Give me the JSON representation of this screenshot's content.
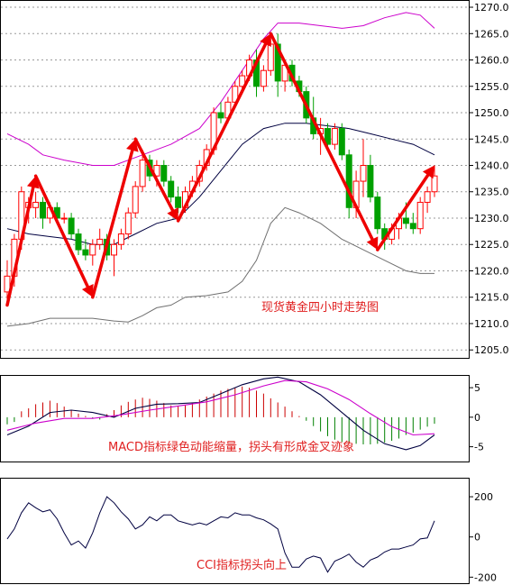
{
  "chart_data": [
    {
      "type": "candlestick",
      "panel": "price",
      "annotation": "现货黄金四小时走势图",
      "y_ticks": [
        "1270.0",
        "1265.0",
        "1260.0",
        "1255.0",
        "1250.0",
        "1245.0",
        "1240.0",
        "1235.0",
        "1230.0",
        "1225.0",
        "1220.0",
        "1215.0",
        "1210.0",
        "1205.0"
      ],
      "ylim": [
        1203.5,
        1271.2
      ],
      "colors": {
        "up": "#ff0000",
        "down": "#00a000",
        "upper_band": "#cc00cc",
        "middle_band": "#000040",
        "lower_band": "#707070",
        "arrow": "#ee0000"
      },
      "candles": [
        {
          "o": 1216,
          "h": 1222,
          "l": 1214,
          "c": 1219
        },
        {
          "o": 1219,
          "h": 1227,
          "l": 1217,
          "c": 1226
        },
        {
          "o": 1226,
          "h": 1236,
          "l": 1224,
          "c": 1235
        },
        {
          "o": 1232,
          "h": 1234,
          "l": 1229,
          "c": 1233
        },
        {
          "o": 1232,
          "h": 1235,
          "l": 1230,
          "c": 1233
        },
        {
          "o": 1233,
          "h": 1234,
          "l": 1228,
          "c": 1230
        },
        {
          "o": 1230,
          "h": 1233,
          "l": 1229,
          "c": 1232
        },
        {
          "o": 1232,
          "h": 1233,
          "l": 1229,
          "c": 1230
        },
        {
          "o": 1230,
          "h": 1231,
          "l": 1229,
          "c": 1230
        },
        {
          "o": 1230,
          "h": 1231,
          "l": 1226,
          "c": 1227
        },
        {
          "o": 1227,
          "h": 1228,
          "l": 1223,
          "c": 1224
        },
        {
          "o": 1224,
          "h": 1226,
          "l": 1222,
          "c": 1223
        },
        {
          "o": 1223,
          "h": 1226,
          "l": 1221,
          "c": 1225
        },
        {
          "o": 1225,
          "h": 1228,
          "l": 1224,
          "c": 1226
        },
        {
          "o": 1226,
          "h": 1227,
          "l": 1222,
          "c": 1223
        },
        {
          "o": 1223,
          "h": 1226,
          "l": 1219,
          "c": 1225
        },
        {
          "o": 1225,
          "h": 1228,
          "l": 1224,
          "c": 1227
        },
        {
          "o": 1227,
          "h": 1232,
          "l": 1226,
          "c": 1231
        },
        {
          "o": 1231,
          "h": 1237,
          "l": 1230,
          "c": 1236
        },
        {
          "o": 1236,
          "h": 1243,
          "l": 1235,
          "c": 1241
        },
        {
          "o": 1241,
          "h": 1242,
          "l": 1237,
          "c": 1238
        },
        {
          "o": 1238,
          "h": 1241,
          "l": 1236,
          "c": 1240
        },
        {
          "o": 1240,
          "h": 1241,
          "l": 1236,
          "c": 1237
        },
        {
          "o": 1237,
          "h": 1238,
          "l": 1233,
          "c": 1234
        },
        {
          "o": 1234,
          "h": 1236,
          "l": 1231,
          "c": 1232
        },
        {
          "o": 1232,
          "h": 1236,
          "l": 1231,
          "c": 1235
        },
        {
          "o": 1235,
          "h": 1238,
          "l": 1234,
          "c": 1237
        },
        {
          "o": 1237,
          "h": 1241,
          "l": 1236,
          "c": 1240
        },
        {
          "o": 1240,
          "h": 1244,
          "l": 1239,
          "c": 1243
        },
        {
          "o": 1243,
          "h": 1251,
          "l": 1242,
          "c": 1250
        },
        {
          "o": 1250,
          "h": 1252,
          "l": 1248,
          "c": 1249
        },
        {
          "o": 1249,
          "h": 1253,
          "l": 1248,
          "c": 1252
        },
        {
          "o": 1252,
          "h": 1256,
          "l": 1251,
          "c": 1255
        },
        {
          "o": 1255,
          "h": 1258,
          "l": 1254,
          "c": 1257
        },
        {
          "o": 1257,
          "h": 1261,
          "l": 1256,
          "c": 1260
        },
        {
          "o": 1260,
          "h": 1262,
          "l": 1253,
          "c": 1255
        },
        {
          "o": 1255,
          "h": 1259,
          "l": 1254,
          "c": 1258
        },
        {
          "o": 1258,
          "h": 1265,
          "l": 1257,
          "c": 1263
        },
        {
          "o": 1263,
          "h": 1265,
          "l": 1253,
          "c": 1256
        },
        {
          "o": 1256,
          "h": 1260,
          "l": 1254,
          "c": 1259
        },
        {
          "o": 1259,
          "h": 1260,
          "l": 1255,
          "c": 1256
        },
        {
          "o": 1256,
          "h": 1257,
          "l": 1253,
          "c": 1254
        },
        {
          "o": 1254,
          "h": 1255,
          "l": 1248,
          "c": 1249
        },
        {
          "o": 1249,
          "h": 1253,
          "l": 1245,
          "c": 1246
        },
        {
          "o": 1246,
          "h": 1249,
          "l": 1242,
          "c": 1247
        },
        {
          "o": 1247,
          "h": 1248,
          "l": 1243,
          "c": 1244
        },
        {
          "o": 1244,
          "h": 1248,
          "l": 1243,
          "c": 1247
        },
        {
          "o": 1247,
          "h": 1248,
          "l": 1241,
          "c": 1242
        },
        {
          "o": 1242,
          "h": 1243,
          "l": 1230,
          "c": 1232
        },
        {
          "o": 1232,
          "h": 1239,
          "l": 1230,
          "c": 1237
        },
        {
          "o": 1237,
          "h": 1245,
          "l": 1234,
          "c": 1240
        },
        {
          "o": 1240,
          "h": 1242,
          "l": 1233,
          "c": 1234
        },
        {
          "o": 1234,
          "h": 1235,
          "l": 1227,
          "c": 1228
        },
        {
          "o": 1228,
          "h": 1229,
          "l": 1224,
          "c": 1226
        },
        {
          "o": 1226,
          "h": 1229,
          "l": 1225,
          "c": 1228
        },
        {
          "o": 1228,
          "h": 1231,
          "l": 1226,
          "c": 1230
        },
        {
          "o": 1230,
          "h": 1233,
          "l": 1228,
          "c": 1229
        },
        {
          "o": 1229,
          "h": 1231,
          "l": 1227,
          "c": 1228
        },
        {
          "o": 1228,
          "h": 1234,
          "l": 1227,
          "c": 1233
        },
        {
          "o": 1233,
          "h": 1236,
          "l": 1231,
          "c": 1235
        },
        {
          "o": 1235,
          "h": 1240,
          "l": 1234,
          "c": 1238
        }
      ],
      "upper_band": [
        [
          0,
          1246
        ],
        [
          3,
          1244
        ],
        [
          5,
          1242
        ],
        [
          8,
          1241
        ],
        [
          12,
          1240
        ],
        [
          15,
          1240
        ],
        [
          19,
          1242
        ],
        [
          23,
          1244
        ],
        [
          27,
          1247
        ],
        [
          30,
          1252
        ],
        [
          33,
          1258
        ],
        [
          36,
          1264
        ],
        [
          38,
          1267
        ],
        [
          41,
          1267
        ],
        [
          44,
          1266.5
        ],
        [
          47,
          1266
        ],
        [
          50,
          1266.5
        ],
        [
          53,
          1268
        ],
        [
          56,
          1269
        ],
        [
          58,
          1268.5
        ],
        [
          60,
          1266
        ]
      ],
      "middle_band": [
        [
          0,
          1228
        ],
        [
          3,
          1227
        ],
        [
          6,
          1226.5
        ],
        [
          9,
          1226
        ],
        [
          12,
          1225
        ],
        [
          15,
          1225
        ],
        [
          18,
          1227
        ],
        [
          21,
          1229
        ],
        [
          24,
          1230
        ],
        [
          27,
          1234
        ],
        [
          30,
          1239
        ],
        [
          33,
          1244
        ],
        [
          36,
          1247
        ],
        [
          39,
          1248
        ],
        [
          42,
          1248
        ],
        [
          45,
          1247.5
        ],
        [
          48,
          1247
        ],
        [
          51,
          1246
        ],
        [
          54,
          1245
        ],
        [
          57,
          1244
        ],
        [
          60,
          1242
        ]
      ],
      "lower_band": [
        [
          0,
          1209.5
        ],
        [
          3,
          1210
        ],
        [
          6,
          1211
        ],
        [
          9,
          1211
        ],
        [
          12,
          1211
        ],
        [
          15,
          1210.5
        ],
        [
          17,
          1210.3
        ],
        [
          19,
          1211.5
        ],
        [
          21,
          1213
        ],
        [
          23,
          1213.5
        ],
        [
          25,
          1215
        ],
        [
          28,
          1215.3
        ],
        [
          31,
          1216
        ],
        [
          33,
          1218
        ],
        [
          35,
          1222
        ],
        [
          37,
          1229
        ],
        [
          39,
          1232
        ],
        [
          41,
          1231
        ],
        [
          44,
          1229
        ],
        [
          47,
          1226
        ],
        [
          50,
          1224
        ],
        [
          53,
          1222
        ],
        [
          56,
          1220
        ],
        [
          58,
          1219.5
        ],
        [
          60,
          1219.5
        ]
      ],
      "arrows": [
        [
          [
            0,
            1213.5
          ],
          [
            4,
            1238
          ]
        ],
        [
          [
            4,
            1238
          ],
          [
            12,
            1215
          ]
        ],
        [
          [
            12,
            1215
          ],
          [
            18,
            1245
          ]
        ],
        [
          [
            18,
            1245
          ],
          [
            24,
            1229.5
          ]
        ],
        [
          [
            24,
            1229.5
          ],
          [
            37,
            1265
          ]
        ],
        [
          [
            37,
            1265
          ],
          [
            52,
            1224
          ]
        ],
        [
          [
            52,
            1224
          ],
          [
            60,
            1240
          ]
        ]
      ]
    },
    {
      "type": "bar",
      "panel": "macd",
      "annotation": "MACD指标绿色动能缩量，拐头有形成金叉迹象",
      "y_ticks": [
        "5",
        "0",
        "-5"
      ],
      "ylim": [
        -7.5,
        7.0
      ],
      "colors": {
        "positive": "#cc0000",
        "negative": "#008000",
        "dif": "#000040",
        "dea": "#cc00cc"
      },
      "histogram": [
        -1.2,
        -0.8,
        1.0,
        1.5,
        2.2,
        2.5,
        2.8,
        2.4,
        1.8,
        1.2,
        0.6,
        0.2,
        -0.2,
        -0.4,
        0.5,
        1.2,
        2.0,
        2.6,
        3.0,
        3.3,
        3.1,
        2.8,
        2.4,
        2.0,
        1.8,
        2.0,
        2.5,
        3.0,
        3.5,
        4.0,
        4.5,
        4.8,
        5.0,
        5.2,
        5.0,
        4.5,
        4.0,
        3.2,
        2.5,
        1.8,
        1.0,
        0.2,
        -0.6,
        -1.5,
        -2.4,
        -3.2,
        -3.8,
        -4.2,
        -4.4,
        -4.5,
        -4.6,
        -4.6,
        -4.5,
        -4.3,
        -4.0,
        -3.6,
        -3.0,
        -2.6,
        -2.1,
        -1.6,
        -1.1
      ],
      "dif": [
        [
          0,
          -3
        ],
        [
          3,
          -1.5
        ],
        [
          6,
          0.8
        ],
        [
          9,
          1.2
        ],
        [
          12,
          0.8
        ],
        [
          15,
          0
        ],
        [
          18,
          1.5
        ],
        [
          21,
          2.2
        ],
        [
          24,
          2.3
        ],
        [
          27,
          2.5
        ],
        [
          30,
          4.0
        ],
        [
          33,
          5.5
        ],
        [
          36,
          6.5
        ],
        [
          38,
          6.8
        ],
        [
          41,
          6.0
        ],
        [
          44,
          3.8
        ],
        [
          47,
          0.8
        ],
        [
          50,
          -2.2
        ],
        [
          53,
          -4.5
        ],
        [
          56,
          -5.5
        ],
        [
          58,
          -4.8
        ],
        [
          60,
          -3.0
        ]
      ],
      "dea": [
        [
          0,
          -2.2
        ],
        [
          4,
          -1.0
        ],
        [
          8,
          -0.2
        ],
        [
          12,
          -0.2
        ],
        [
          16,
          0.4
        ],
        [
          20,
          1.2
        ],
        [
          24,
          1.9
        ],
        [
          28,
          2.6
        ],
        [
          32,
          3.8
        ],
        [
          36,
          5.3
        ],
        [
          39,
          6.2
        ],
        [
          42,
          6.0
        ],
        [
          45,
          4.8
        ],
        [
          48,
          3.0
        ],
        [
          51,
          0.6
        ],
        [
          54,
          -1.6
        ],
        [
          57,
          -3.0
        ],
        [
          60,
          -2.8
        ]
      ]
    },
    {
      "type": "line",
      "panel": "cci",
      "annotation": "CCI指标拐头向上",
      "y_ticks": [
        "200",
        "0",
        "-200"
      ],
      "ylim": [
        -230,
        290
      ],
      "colors": {
        "line": "#000040"
      },
      "values": [
        [
          0,
          -10
        ],
        [
          1,
          40
        ],
        [
          2,
          120
        ],
        [
          3,
          170
        ],
        [
          4,
          145
        ],
        [
          5,
          125
        ],
        [
          6,
          135
        ],
        [
          7,
          90
        ],
        [
          8,
          20
        ],
        [
          9,
          -40
        ],
        [
          10,
          -20
        ],
        [
          11,
          -55
        ],
        [
          12,
          20
        ],
        [
          13,
          120
        ],
        [
          14,
          200
        ],
        [
          15,
          170
        ],
        [
          16,
          125
        ],
        [
          17,
          90
        ],
        [
          18,
          40
        ],
        [
          19,
          60
        ],
        [
          20,
          100
        ],
        [
          21,
          80
        ],
        [
          22,
          110
        ],
        [
          23,
          110
        ],
        [
          24,
          80
        ],
        [
          25,
          70
        ],
        [
          26,
          60
        ],
        [
          27,
          70
        ],
        [
          28,
          60
        ],
        [
          29,
          80
        ],
        [
          30,
          100
        ],
        [
          31,
          95
        ],
        [
          32,
          120
        ],
        [
          33,
          110
        ],
        [
          34,
          110
        ],
        [
          35,
          95
        ],
        [
          36,
          85
        ],
        [
          37,
          65
        ],
        [
          38,
          40
        ],
        [
          39,
          -80
        ],
        [
          40,
          -150
        ],
        [
          41,
          -150
        ],
        [
          42,
          -110
        ],
        [
          43,
          -95
        ],
        [
          44,
          -105
        ],
        [
          45,
          -175
        ],
        [
          46,
          -120
        ],
        [
          47,
          -105
        ],
        [
          48,
          -85
        ],
        [
          49,
          -125
        ],
        [
          50,
          -150
        ],
        [
          51,
          -115
        ],
        [
          52,
          -100
        ],
        [
          53,
          -75
        ],
        [
          54,
          -60
        ],
        [
          55,
          -60
        ],
        [
          56,
          -50
        ],
        [
          57,
          -40
        ],
        [
          58,
          -10
        ],
        [
          59,
          -5
        ],
        [
          60,
          80
        ]
      ]
    }
  ]
}
